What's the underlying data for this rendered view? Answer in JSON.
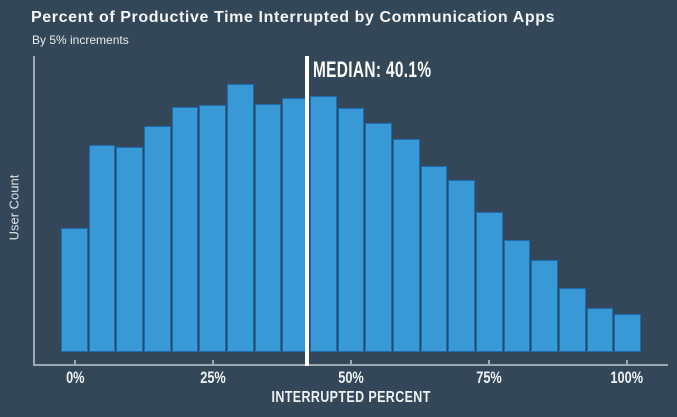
{
  "header": {
    "title": "Percent of Productive Time Interrupted by Communication Apps",
    "subtitle": "By 5% increments"
  },
  "axes": {
    "y_label": "User Count",
    "x_label": "INTERRUPTED PERCENT",
    "x_tick_labels": [
      "0%",
      "25%",
      "50%",
      "75%",
      "100%"
    ]
  },
  "median": {
    "label": "MEDIAN: 40.1%",
    "value_percent": 40.1
  },
  "colors": {
    "background": "#334759",
    "bar_fill": "#3999D6",
    "bar_border": "#1E6CAD",
    "axis_line": "#9FA9B2",
    "title_text": "#F3F5F6",
    "subtitle_text": "#E8ECEF",
    "tick_text": "#EDF1F3",
    "median_line": "#FFFFFF"
  },
  "chart_data": {
    "type": "bar",
    "subtype": "histogram",
    "title": "Percent of Productive Time Interrupted by Communication Apps",
    "subtitle": "By 5% increments",
    "xlabel": "INTERRUPTED PERCENT",
    "ylabel": "User Count",
    "x_tick_labels": [
      "0%",
      "25%",
      "50%",
      "75%",
      "100%"
    ],
    "x_tick_bin_indices": [
      0,
      5,
      10,
      15,
      20
    ],
    "bin_width_percent": 5,
    "bin_centers_percent": [
      0,
      5,
      10,
      15,
      20,
      25,
      30,
      35,
      40,
      45,
      50,
      55,
      60,
      65,
      70,
      75,
      80,
      85,
      90,
      95,
      100
    ],
    "values_relative": [
      124,
      207,
      205,
      226,
      245,
      247,
      268,
      248,
      254,
      256,
      244,
      229,
      213,
      186,
      172,
      140,
      112,
      92,
      64,
      44,
      38
    ],
    "value_note": "y-axis has no numeric ticks; values are relative bar heights read from the plot",
    "median_percent": 40.1,
    "legend": "none",
    "grid": "off",
    "ylim_relative": [
      0,
      300
    ]
  }
}
